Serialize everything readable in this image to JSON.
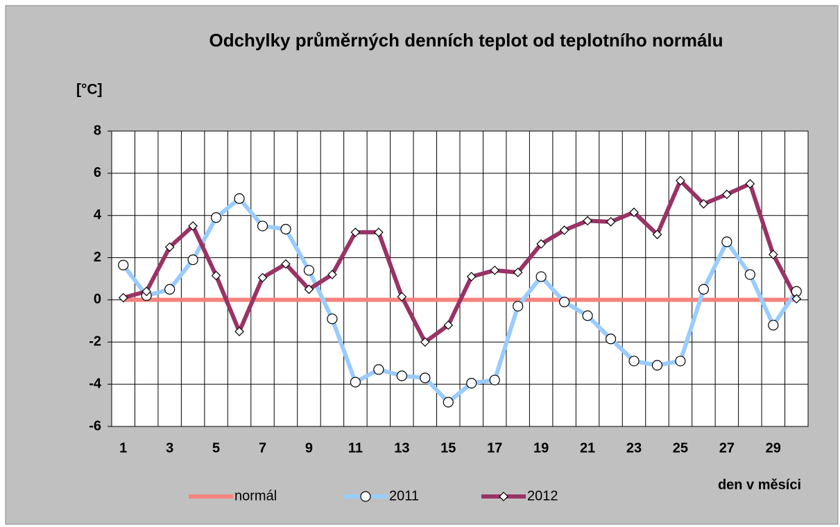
{
  "chart_data": {
    "type": "line",
    "title": "Odchylky průměrných denních teplot od teplotního normálu",
    "y_label": "[°C]",
    "x_label": "den v měsíci",
    "categories": [
      1,
      null,
      3,
      null,
      5,
      null,
      7,
      null,
      9,
      null,
      11,
      null,
      13,
      null,
      15,
      null,
      17,
      null,
      19,
      null,
      21,
      null,
      23,
      null,
      25,
      null,
      27,
      null,
      29,
      null
    ],
    "series": [
      {
        "name": "normál",
        "color": "#f4837d",
        "marker": "none",
        "values": [
          0,
          0,
          0,
          0,
          0,
          0,
          0,
          0,
          0,
          0,
          0,
          0,
          0,
          0,
          0,
          0,
          0,
          0,
          0,
          0,
          0,
          0,
          0,
          0,
          0,
          0,
          0,
          0,
          0,
          0
        ]
      },
      {
        "name": "2011",
        "color": "#99ccff",
        "marker": "circle",
        "values": [
          1.65,
          0.2,
          0.5,
          1.9,
          3.9,
          4.8,
          3.5,
          3.35,
          1.4,
          -0.9,
          -3.9,
          -3.3,
          -3.6,
          -3.7,
          -4.85,
          -3.95,
          -3.8,
          -0.3,
          1.1,
          -0.1,
          -0.75,
          -1.85,
          -2.9,
          -3.1,
          -2.9,
          0.5,
          2.75,
          1.2,
          -1.2,
          0.4
        ]
      },
      {
        "name": "2012",
        "color": "#993366",
        "marker": "diamond",
        "values": [
          0.1,
          0.4,
          2.5,
          3.5,
          1.15,
          -1.5,
          1.05,
          1.7,
          0.5,
          1.2,
          3.2,
          3.2,
          0.15,
          -2.0,
          -1.2,
          1.1,
          1.4,
          1.3,
          2.65,
          3.3,
          3.75,
          3.7,
          4.15,
          3.1,
          5.65,
          4.55,
          5.0,
          5.5,
          2.15,
          0.05
        ]
      }
    ],
    "ylim": [
      -6,
      8
    ],
    "yticks": [
      -6,
      -4,
      -2,
      0,
      2,
      4,
      6,
      8
    ],
    "grid": true,
    "legend": "bottom"
  }
}
